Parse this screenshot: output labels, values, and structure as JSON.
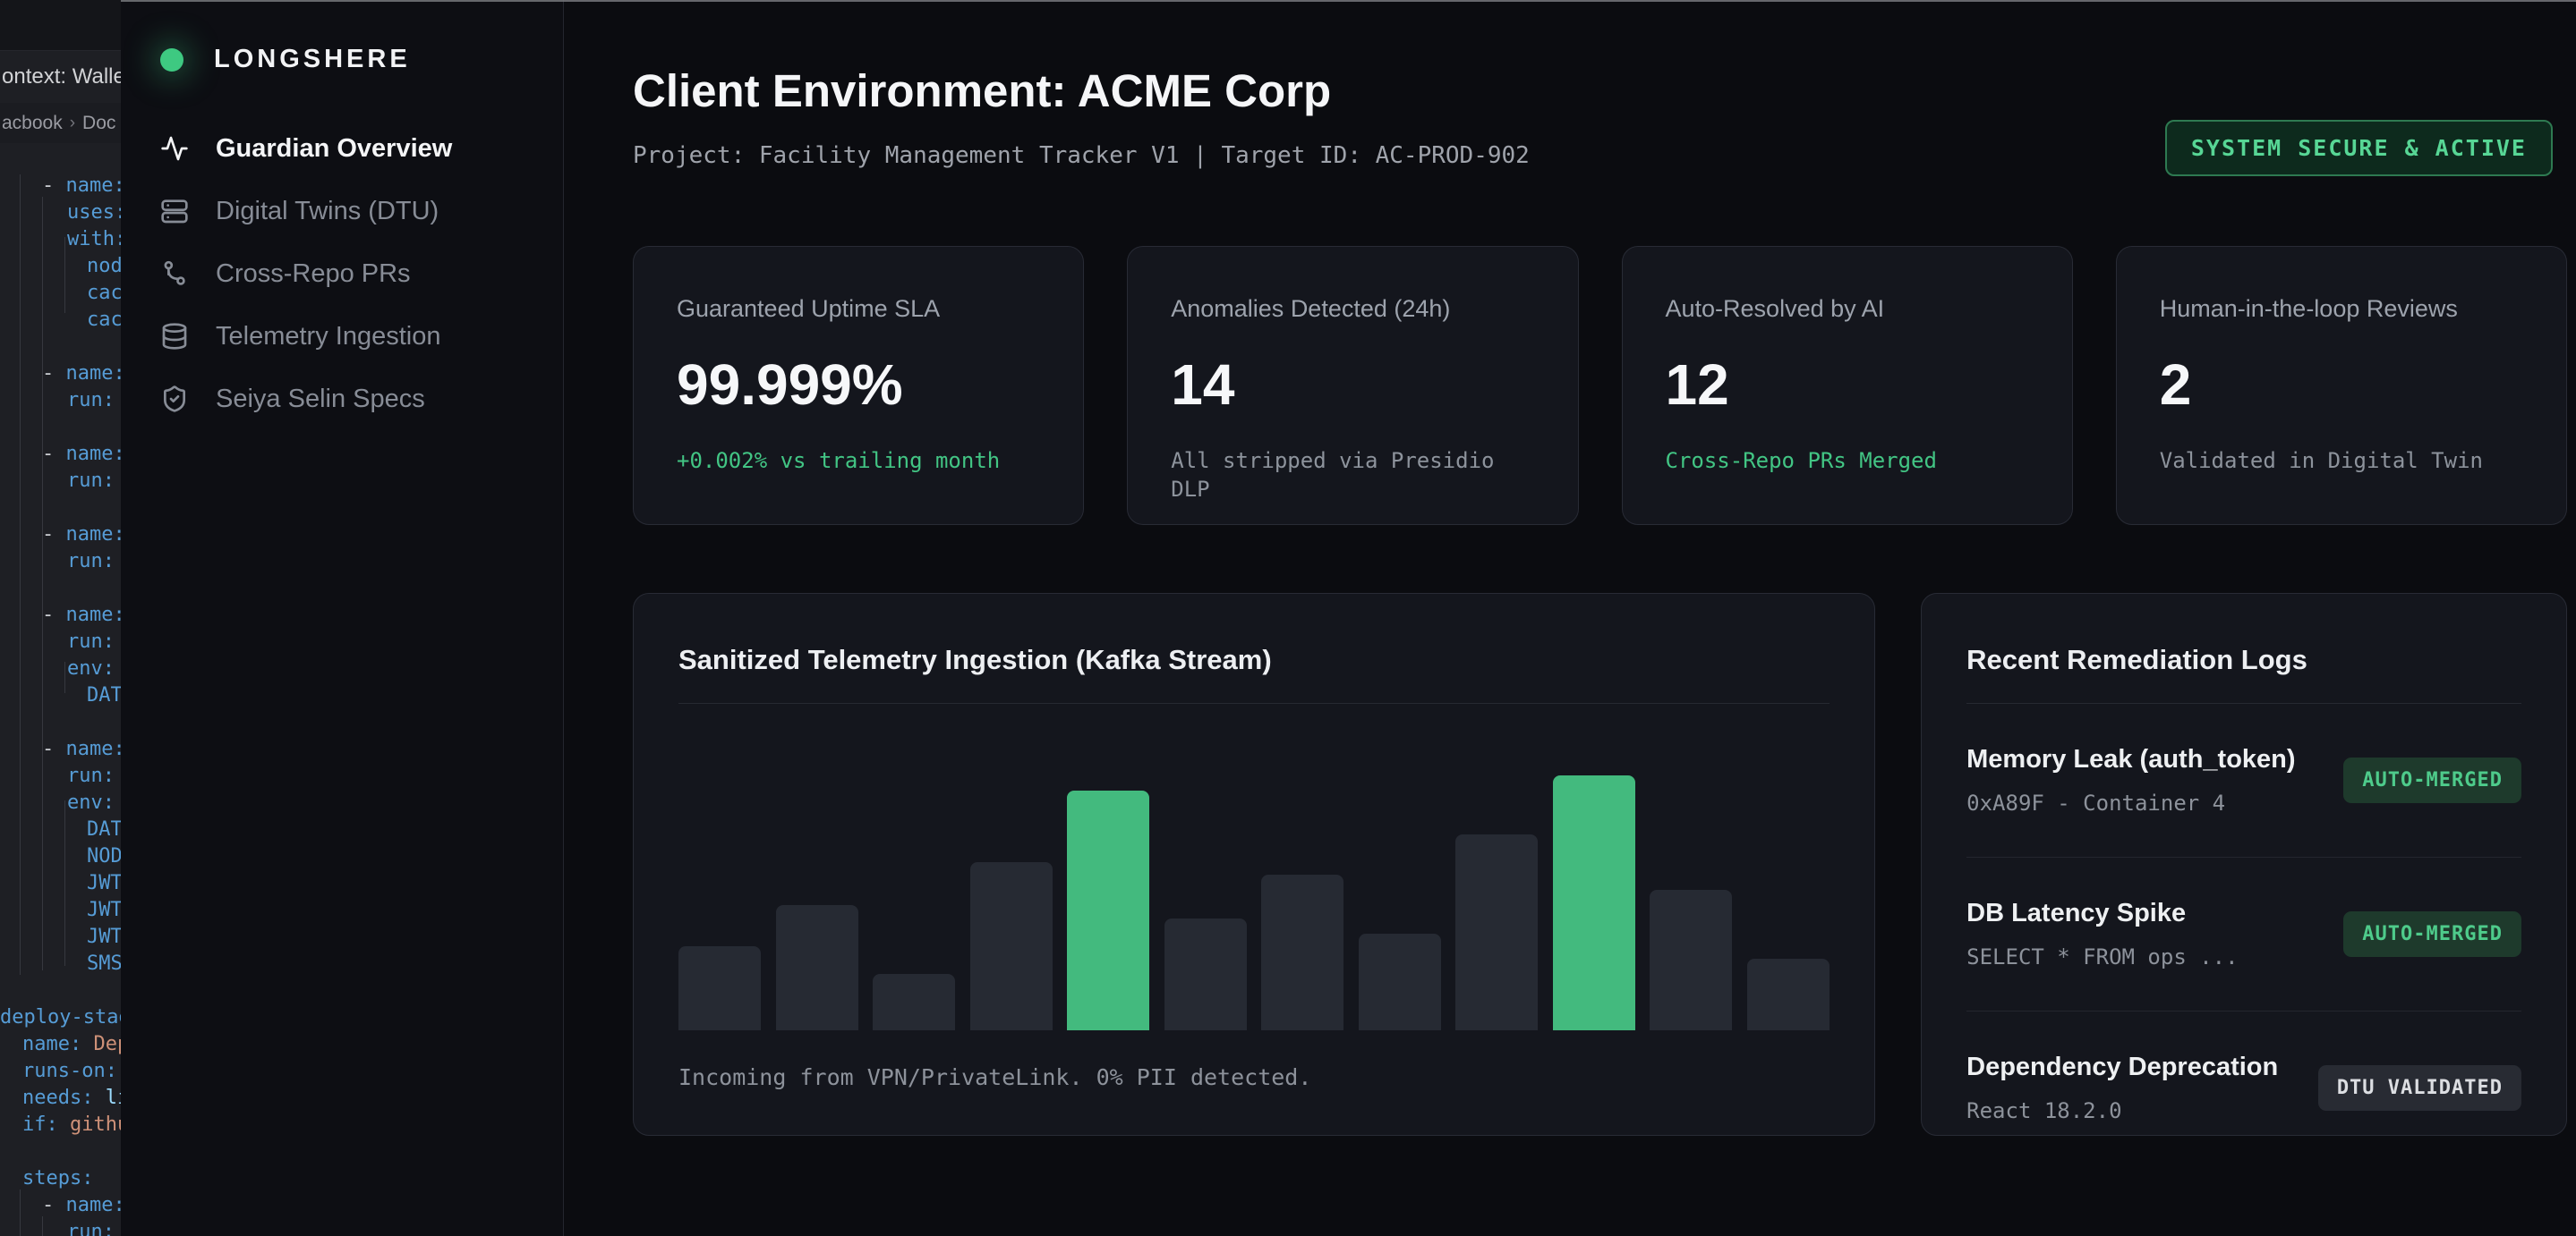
{
  "colors": {
    "accent_green": "#43ba7e",
    "status_green_text": "#57d695",
    "bar_default": "#262a33",
    "card_bg": "#14161d",
    "main_bg": "#0b0c10"
  },
  "editor": {
    "tab_label": "ontext: Wallet",
    "breadcrumb": {
      "part1": "acbook",
      "sep": "›",
      "part2": "Doc"
    },
    "lines": [
      {
        "i": 2,
        "s": [
          [
            "- ",
            "p"
          ],
          [
            "name:",
            "k"
          ]
        ]
      },
      {
        "i": 3,
        "s": [
          [
            "uses:",
            "k"
          ]
        ]
      },
      {
        "i": 3,
        "s": [
          [
            "with:",
            "k"
          ]
        ]
      },
      {
        "i": 4,
        "s": [
          [
            "node",
            "k"
          ]
        ]
      },
      {
        "i": 4,
        "s": [
          [
            "cach",
            "k"
          ]
        ]
      },
      {
        "i": 4,
        "s": [
          [
            "cach",
            "k"
          ]
        ]
      },
      {},
      {
        "i": 2,
        "s": [
          [
            "- ",
            "p"
          ],
          [
            "name:",
            "k"
          ]
        ]
      },
      {
        "i": 3,
        "s": [
          [
            "run:",
            "k"
          ]
        ]
      },
      {},
      {
        "i": 2,
        "s": [
          [
            "- ",
            "p"
          ],
          [
            "name:",
            "k"
          ]
        ]
      },
      {
        "i": 3,
        "s": [
          [
            "run:",
            "k"
          ]
        ]
      },
      {},
      {
        "i": 2,
        "s": [
          [
            "- ",
            "p"
          ],
          [
            "name:",
            "k"
          ]
        ]
      },
      {
        "i": 3,
        "s": [
          [
            "run:",
            "k"
          ]
        ]
      },
      {},
      {
        "i": 2,
        "s": [
          [
            "- ",
            "p"
          ],
          [
            "name:",
            "k"
          ]
        ]
      },
      {
        "i": 3,
        "s": [
          [
            "run:",
            "k"
          ]
        ]
      },
      {
        "i": 3,
        "s": [
          [
            "env:",
            "k"
          ]
        ]
      },
      {
        "i": 4,
        "s": [
          [
            "DATA",
            "k"
          ]
        ]
      },
      {},
      {
        "i": 2,
        "s": [
          [
            "- ",
            "p"
          ],
          [
            "name:",
            "k"
          ]
        ]
      },
      {
        "i": 3,
        "s": [
          [
            "run:",
            "k"
          ]
        ]
      },
      {
        "i": 3,
        "s": [
          [
            "env:",
            "k"
          ]
        ]
      },
      {
        "i": 4,
        "s": [
          [
            "DATA",
            "k"
          ]
        ]
      },
      {
        "i": 4,
        "s": [
          [
            "NODE",
            "k"
          ]
        ]
      },
      {
        "i": 4,
        "s": [
          [
            "JWT_",
            "k"
          ]
        ]
      },
      {
        "i": 4,
        "s": [
          [
            "JWT_",
            "k"
          ]
        ]
      },
      {
        "i": 4,
        "s": [
          [
            "JWT_",
            "k"
          ]
        ]
      },
      {
        "i": 4,
        "s": [
          [
            "SMS_",
            "k"
          ]
        ]
      },
      {},
      {
        "i": 0,
        "s": [
          [
            "deploy-stag",
            "k"
          ]
        ]
      },
      {
        "i": 1,
        "s": [
          [
            "name: ",
            "k"
          ],
          [
            "Dep",
            "v"
          ]
        ]
      },
      {
        "i": 1,
        "s": [
          [
            "runs-on:",
            "k"
          ]
        ]
      },
      {
        "i": 1,
        "s": [
          [
            "needs: ",
            "k"
          ],
          [
            "li",
            "r"
          ]
        ]
      },
      {
        "i": 1,
        "s": [
          [
            "if: ",
            "k"
          ],
          [
            "githu",
            "v"
          ]
        ]
      },
      {},
      {
        "i": 1,
        "s": [
          [
            "steps:",
            "k"
          ]
        ]
      },
      {
        "i": 2,
        "s": [
          [
            "- ",
            "p"
          ],
          [
            "name:",
            "k"
          ]
        ]
      },
      {
        "i": 3,
        "s": [
          [
            "run:",
            "k"
          ]
        ]
      }
    ]
  },
  "sidebar": {
    "brand": "LONGSHERE",
    "items": [
      {
        "label": "Guardian Overview",
        "icon": "activity-icon",
        "active": true
      },
      {
        "label": "Digital Twins (DTU)",
        "icon": "server-icon",
        "active": false
      },
      {
        "label": "Cross-Repo PRs",
        "icon": "git-branch-icon",
        "active": false
      },
      {
        "label": "Telemetry Ingestion",
        "icon": "database-icon",
        "active": false
      },
      {
        "label": "Seiya Selin Specs",
        "icon": "shield-check-icon",
        "active": false
      }
    ]
  },
  "header": {
    "title": "Client Environment: ACME Corp",
    "subtitle": "Project: Facility Management Tracker V1  |  Target ID: AC-PROD-902",
    "status_badge": "SYSTEM SECURE & ACTIVE"
  },
  "stats": [
    {
      "label": "Guaranteed Uptime SLA",
      "value": "99.999%",
      "note": "+0.002% vs trailing month",
      "note_color": "green"
    },
    {
      "label": "Anomalies Detected (24h)",
      "value": "14",
      "note": "All stripped via Presidio DLP",
      "note_color": "gray"
    },
    {
      "label": "Auto-Resolved by AI",
      "value": "12",
      "note": "Cross-Repo PRs Merged",
      "note_color": "green"
    },
    {
      "label": "Human-in-the-loop Reviews",
      "value": "2",
      "note": "Validated in Digital Twin",
      "note_color": "gray"
    }
  ],
  "chart_panel": {
    "title": "Sanitized Telemetry Ingestion (Kafka Stream)",
    "caption": "Incoming from VPN/PrivateLink. 0% PII detected."
  },
  "chart_data": {
    "type": "bar",
    "title": "Sanitized Telemetry Ingestion (Kafka Stream)",
    "values": [
      33,
      49,
      22,
      66,
      94,
      44,
      61,
      38,
      77,
      100,
      55,
      28
    ],
    "ylim": [
      0,
      100
    ],
    "highlight_indices": [
      4,
      9
    ],
    "bar_color": "#262a33",
    "highlight_color": "#43ba7e",
    "xlabel": "",
    "ylabel": "",
    "grid": false,
    "legend": "none",
    "axes_shown": false,
    "caption": "Incoming from VPN/PrivateLink. 0% PII detected."
  },
  "logs_panel": {
    "title": "Recent Remediation Logs",
    "items": [
      {
        "title": "Memory Leak (auth_token)",
        "detail": "0xA89F - Container 4",
        "badge": "AUTO-MERGED",
        "badge_style": "green"
      },
      {
        "title": "DB Latency Spike",
        "detail": "SELECT * FROM ops ...",
        "badge": "AUTO-MERGED",
        "badge_style": "green"
      },
      {
        "title": "Dependency Deprecation",
        "detail": "React 18.2.0",
        "badge": "DTU VALIDATED",
        "badge_style": "gray"
      }
    ]
  }
}
